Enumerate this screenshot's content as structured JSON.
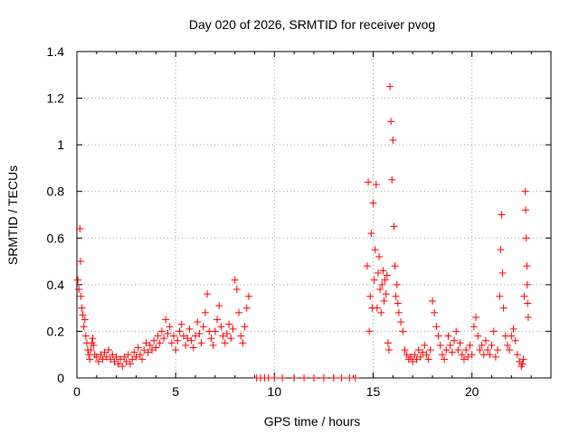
{
  "chart_data": {
    "type": "scatter",
    "title": "Day 020 of 2026, SRMTID for receiver pvog",
    "xlabel": "GPS time / hours",
    "ylabel": "SRMTID / TECUs",
    "xlim": [
      0,
      24.0
    ],
    "ylim": [
      0,
      1.4
    ],
    "x_ticks": [
      0,
      5,
      10,
      15,
      20
    ],
    "x_tick_labels": [
      "0",
      "5",
      "10",
      "15",
      "20"
    ],
    "y_ticks": [
      0,
      0.2,
      0.4,
      0.6,
      0.8,
      1,
      1.2,
      1.4
    ],
    "y_tick_labels": [
      "0",
      "0.2",
      "0.4",
      "0.6",
      "0.8",
      "1",
      "1.2",
      "1.4"
    ],
    "grid": true,
    "marker": "+",
    "series": [
      {
        "name": "SRMTID",
        "color": "#ff0000",
        "points": [
          [
            0.05,
            0.42
          ],
          [
            0.1,
            0.38
          ],
          [
            0.15,
            0.64
          ],
          [
            0.18,
            0.5
          ],
          [
            0.2,
            0.35
          ],
          [
            0.25,
            0.3
          ],
          [
            0.3,
            0.27
          ],
          [
            0.35,
            0.22
          ],
          [
            0.4,
            0.25
          ],
          [
            0.45,
            0.18
          ],
          [
            0.5,
            0.15
          ],
          [
            0.55,
            0.12
          ],
          [
            0.6,
            0.1
          ],
          [
            0.65,
            0.08
          ],
          [
            0.7,
            0.12
          ],
          [
            0.75,
            0.15
          ],
          [
            0.8,
            0.17
          ],
          [
            0.85,
            0.14
          ],
          [
            0.9,
            0.1
          ],
          [
            1.0,
            0.09
          ],
          [
            1.1,
            0.07
          ],
          [
            1.2,
            0.1
          ],
          [
            1.3,
            0.08
          ],
          [
            1.4,
            0.11
          ],
          [
            1.5,
            0.09
          ],
          [
            1.6,
            0.12
          ],
          [
            1.7,
            0.08
          ],
          [
            1.8,
            0.1
          ],
          [
            1.9,
            0.07
          ],
          [
            2.0,
            0.09
          ],
          [
            2.1,
            0.06
          ],
          [
            2.2,
            0.08
          ],
          [
            2.3,
            0.05
          ],
          [
            2.4,
            0.09
          ],
          [
            2.5,
            0.07
          ],
          [
            2.6,
            0.1
          ],
          [
            2.7,
            0.06
          ],
          [
            2.8,
            0.08
          ],
          [
            2.9,
            0.11
          ],
          [
            3.0,
            0.09
          ],
          [
            3.1,
            0.13
          ],
          [
            3.2,
            0.1
          ],
          [
            3.3,
            0.08
          ],
          [
            3.4,
            0.12
          ],
          [
            3.5,
            0.15
          ],
          [
            3.6,
            0.11
          ],
          [
            3.7,
            0.14
          ],
          [
            3.8,
            0.12
          ],
          [
            3.9,
            0.16
          ],
          [
            4.0,
            0.13
          ],
          [
            4.1,
            0.18
          ],
          [
            4.2,
            0.15
          ],
          [
            4.3,
            0.2
          ],
          [
            4.4,
            0.17
          ],
          [
            4.5,
            0.25
          ],
          [
            4.6,
            0.19
          ],
          [
            4.7,
            0.22
          ],
          [
            4.8,
            0.15
          ],
          [
            4.9,
            0.18
          ],
          [
            5.0,
            0.12
          ],
          [
            5.1,
            0.16
          ],
          [
            5.2,
            0.2
          ],
          [
            5.3,
            0.23
          ],
          [
            5.4,
            0.18
          ],
          [
            5.5,
            0.14
          ],
          [
            5.6,
            0.17
          ],
          [
            5.7,
            0.21
          ],
          [
            5.8,
            0.16
          ],
          [
            5.9,
            0.13
          ],
          [
            6.0,
            0.18
          ],
          [
            6.1,
            0.24
          ],
          [
            6.2,
            0.19
          ],
          [
            6.3,
            0.15
          ],
          [
            6.4,
            0.22
          ],
          [
            6.5,
            0.28
          ],
          [
            6.6,
            0.36
          ],
          [
            6.7,
            0.2
          ],
          [
            6.8,
            0.17
          ],
          [
            6.9,
            0.14
          ],
          [
            7.0,
            0.2
          ],
          [
            7.1,
            0.25
          ],
          [
            7.2,
            0.31
          ],
          [
            7.3,
            0.22
          ],
          [
            7.4,
            0.18
          ],
          [
            7.5,
            0.15
          ],
          [
            7.6,
            0.19
          ],
          [
            7.7,
            0.23
          ],
          [
            7.8,
            0.17
          ],
          [
            7.9,
            0.21
          ],
          [
            8.0,
            0.42
          ],
          [
            8.1,
            0.38
          ],
          [
            8.2,
            0.28
          ],
          [
            8.3,
            0.18
          ],
          [
            8.4,
            0.15
          ],
          [
            8.5,
            0.22
          ],
          [
            8.6,
            0.3
          ],
          [
            8.7,
            0.35
          ],
          [
            9.1,
            0.0
          ],
          [
            9.3,
            0.0
          ],
          [
            9.5,
            0.0
          ],
          [
            9.7,
            0.0
          ],
          [
            10.0,
            0.0
          ],
          [
            10.4,
            0.0
          ],
          [
            11.0,
            0.0
          ],
          [
            11.5,
            0.0
          ],
          [
            12.0,
            0.0
          ],
          [
            12.5,
            0.0
          ],
          [
            13.0,
            0.0
          ],
          [
            13.4,
            0.0
          ],
          [
            13.8,
            0.0
          ],
          [
            14.1,
            0.0
          ],
          [
            14.7,
            0.48
          ],
          [
            14.75,
            0.84
          ],
          [
            14.8,
            0.2
          ],
          [
            14.85,
            0.35
          ],
          [
            14.9,
            0.62
          ],
          [
            14.95,
            0.3
          ],
          [
            15.0,
            0.75
          ],
          [
            15.05,
            0.42
          ],
          [
            15.1,
            0.55
          ],
          [
            15.15,
            0.83
          ],
          [
            15.2,
            0.3
          ],
          [
            15.25,
            0.45
          ],
          [
            15.3,
            0.52
          ],
          [
            15.35,
            0.38
          ],
          [
            15.4,
            0.28
          ],
          [
            15.45,
            0.4
          ],
          [
            15.5,
            0.46
          ],
          [
            15.55,
            0.33
          ],
          [
            15.6,
            0.42
          ],
          [
            15.65,
            0.36
          ],
          [
            15.7,
            0.44
          ],
          [
            15.75,
            0.15
          ],
          [
            15.8,
            0.12
          ],
          [
            15.85,
            1.25
          ],
          [
            15.9,
            1.1
          ],
          [
            15.95,
            0.85
          ],
          [
            16.0,
            1.02
          ],
          [
            16.05,
            0.65
          ],
          [
            16.1,
            0.48
          ],
          [
            16.15,
            0.35
          ],
          [
            16.2,
            0.4
          ],
          [
            16.25,
            0.32
          ],
          [
            16.3,
            0.28
          ],
          [
            16.4,
            0.24
          ],
          [
            16.5,
            0.2
          ],
          [
            16.6,
            0.12
          ],
          [
            16.7,
            0.1
          ],
          [
            16.8,
            0.08
          ],
          [
            16.9,
            0.09
          ],
          [
            17.0,
            0.07
          ],
          [
            17.1,
            0.1
          ],
          [
            17.2,
            0.08
          ],
          [
            17.3,
            0.12
          ],
          [
            17.4,
            0.09
          ],
          [
            17.5,
            0.11
          ],
          [
            17.6,
            0.14
          ],
          [
            17.7,
            0.1
          ],
          [
            17.8,
            0.08
          ],
          [
            17.9,
            0.12
          ],
          [
            18.0,
            0.33
          ],
          [
            18.1,
            0.28
          ],
          [
            18.2,
            0.22
          ],
          [
            18.3,
            0.18
          ],
          [
            18.4,
            0.14
          ],
          [
            18.5,
            0.1
          ],
          [
            18.6,
            0.08
          ],
          [
            18.7,
            0.12
          ],
          [
            18.8,
            0.18
          ],
          [
            18.9,
            0.14
          ],
          [
            19.0,
            0.11
          ],
          [
            19.1,
            0.16
          ],
          [
            19.2,
            0.2
          ],
          [
            19.3,
            0.12
          ],
          [
            19.4,
            0.15
          ],
          [
            19.5,
            0.1
          ],
          [
            19.6,
            0.08
          ],
          [
            19.7,
            0.12
          ],
          [
            19.8,
            0.09
          ],
          [
            19.9,
            0.14
          ],
          [
            20.0,
            0.1
          ],
          [
            20.1,
            0.22
          ],
          [
            20.2,
            0.26
          ],
          [
            20.3,
            0.18
          ],
          [
            20.4,
            0.12
          ],
          [
            20.5,
            0.14
          ],
          [
            20.6,
            0.1
          ],
          [
            20.7,
            0.16
          ],
          [
            20.8,
            0.12
          ],
          [
            20.9,
            0.1
          ],
          [
            21.0,
            0.14
          ],
          [
            21.1,
            0.2
          ],
          [
            21.2,
            0.09
          ],
          [
            21.3,
            0.12
          ],
          [
            21.4,
            0.35
          ],
          [
            21.45,
            0.55
          ],
          [
            21.5,
            0.7
          ],
          [
            21.55,
            0.45
          ],
          [
            21.6,
            0.3
          ],
          [
            21.7,
            0.18
          ],
          [
            21.8,
            0.14
          ],
          [
            21.9,
            0.12
          ],
          [
            22.0,
            0.18
          ],
          [
            22.1,
            0.21
          ],
          [
            22.2,
            0.16
          ],
          [
            22.3,
            0.1
          ],
          [
            22.4,
            0.07
          ],
          [
            22.5,
            0.05
          ],
          [
            22.55,
            0.06
          ],
          [
            22.6,
            0.08
          ],
          [
            22.65,
            0.35
          ],
          [
            22.7,
            0.8
          ],
          [
            22.72,
            0.72
          ],
          [
            22.75,
            0.6
          ],
          [
            22.78,
            0.48
          ],
          [
            22.8,
            0.4
          ],
          [
            22.82,
            0.32
          ],
          [
            22.85,
            0.26
          ]
        ]
      }
    ]
  }
}
